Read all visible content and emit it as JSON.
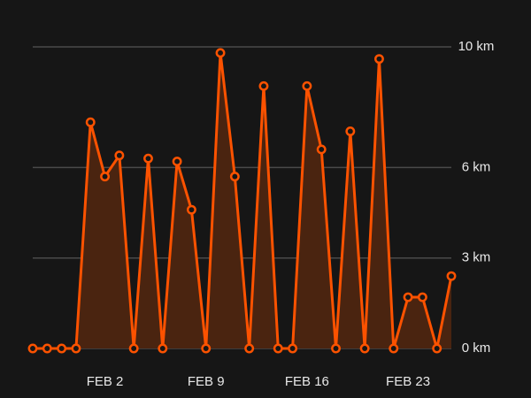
{
  "chart_data": {
    "type": "area",
    "categories": [
      null,
      null,
      null,
      null,
      null,
      "FEB 2",
      null,
      null,
      null,
      null,
      null,
      null,
      "FEB 9",
      null,
      null,
      null,
      null,
      null,
      null,
      "FEB 16",
      null,
      null,
      null,
      null,
      null,
      null,
      "FEB 23",
      null,
      null,
      null
    ],
    "series": [
      {
        "color": "#fc5200",
        "values": [
          0,
          0,
          0,
          0,
          7.5,
          5.7,
          6.4,
          0,
          6.3,
          0,
          6.2,
          4.6,
          0,
          9.8,
          5.7,
          0,
          8.7,
          0,
          0,
          8.7,
          6.6,
          0,
          7.2,
          0,
          9.6,
          0,
          1.7,
          1.7,
          0,
          2.4
        ]
      }
    ],
    "area_color": "#4a2410",
    "ylim": [
      0,
      10
    ],
    "yticks": [
      {
        "value": 0,
        "label": "0 km"
      },
      {
        "value": 3,
        "label": "3 km"
      },
      {
        "value": 6,
        "label": "6 km"
      },
      {
        "value": 10,
        "label": "10 km"
      }
    ],
    "grid": true
  }
}
